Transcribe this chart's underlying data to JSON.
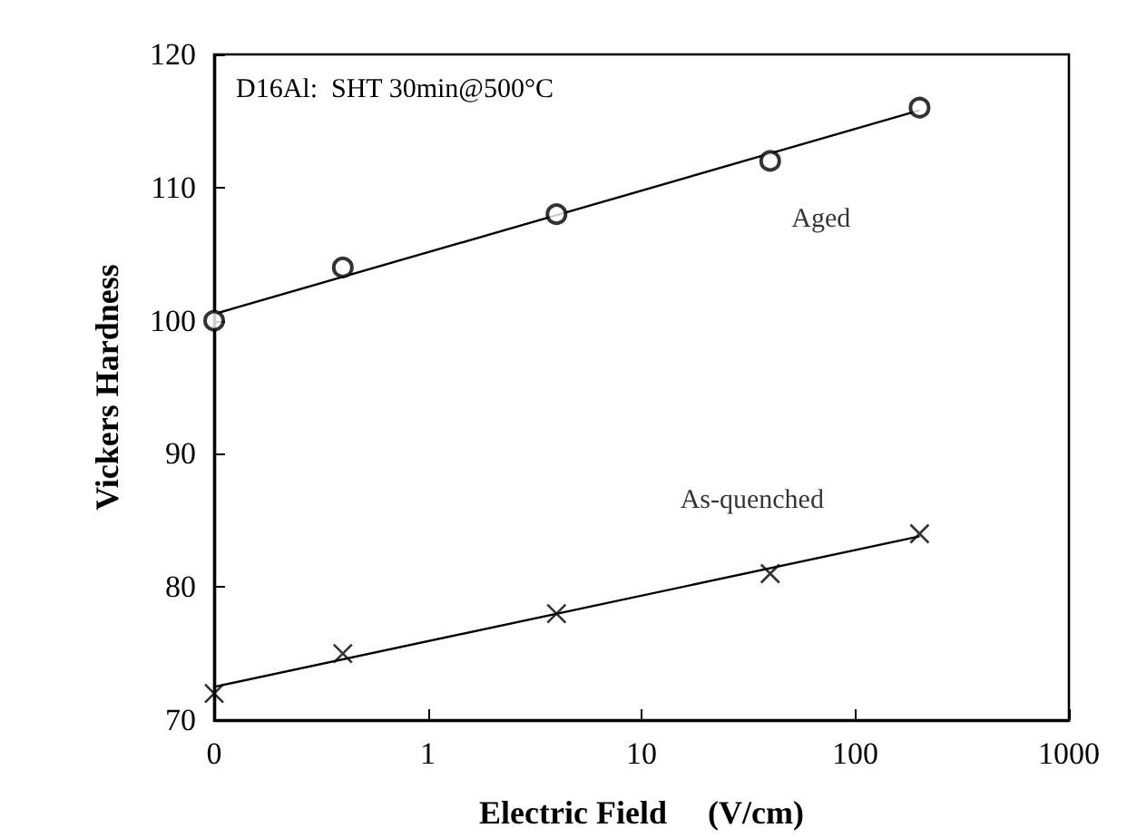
{
  "chart_data": {
    "type": "scatter",
    "xlabel": "Electric Field     (V/cm)",
    "ylabel": "Vickers Hardness",
    "annotations": [
      "D16Al:  SHT 30min@500°C"
    ],
    "log": "x",
    "xlim": [
      0.1,
      1000
    ],
    "xticks": [
      {
        "value": 0.1,
        "label": "0"
      },
      1,
      10,
      100,
      1000
    ],
    "ylim": [
      70,
      120
    ],
    "yticks": [
      70,
      80,
      90,
      100,
      110,
      120
    ],
    "grid": false,
    "legend": false,
    "series": [
      {
        "name": "Aged",
        "marker": "circle",
        "color": "#000000",
        "x": [
          0.1,
          0.4,
          4,
          40,
          200
        ],
        "values": [
          100,
          104,
          108,
          112,
          116
        ]
      },
      {
        "type": "line",
        "marker": "none",
        "color": "#000000",
        "x": [
          0.1,
          200
        ],
        "values": [
          100.5,
          115.8
        ]
      },
      {
        "name": "As-quenched",
        "marker": "cross",
        "color": "#000000",
        "x": [
          0.1,
          0.4,
          4,
          40,
          200
        ],
        "values": [
          72,
          75,
          78,
          81,
          84
        ]
      },
      {
        "type": "line",
        "marker": "none",
        "color": "#000000",
        "x": [
          0.1,
          200
        ],
        "values": [
          72.5,
          83.8
        ]
      }
    ]
  }
}
